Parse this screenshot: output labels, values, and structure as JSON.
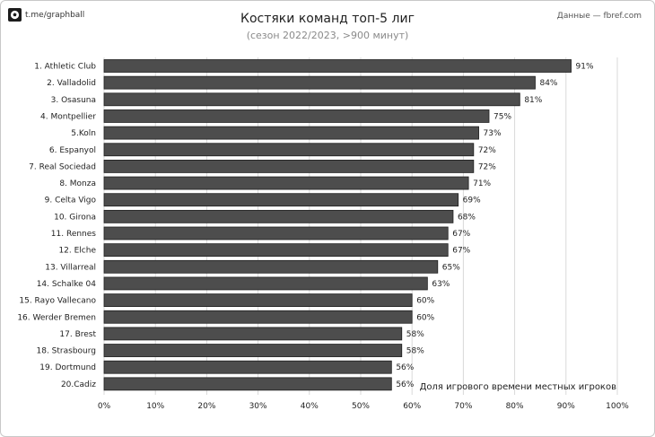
{
  "header": {
    "brand": "t.me/graphball",
    "brand_icon": "soccer-ball-icon",
    "source": "Данные — fbref.com",
    "title": "Костяки команд топ-5 лиг",
    "subtitle": "(сезон 2022/2023, >900 минут)"
  },
  "chart_data": {
    "type": "bar",
    "orientation": "horizontal",
    "categories": [
      "1. Athletic Club",
      "2. Valladolid",
      "3. Osasuna",
      "4. Montpellier",
      "5.Koln",
      "6. Espanyol",
      "7. Real Sociedad",
      "8. Monza",
      "9. Celta Vigo",
      "10. Girona",
      "11. Rennes",
      "12. Elche",
      "13. Villarreal",
      "14. Schalke 04",
      "15. Rayo Vallecano",
      "16. Werder Bremen",
      "17. Brest",
      "18. Strasbourg",
      "19. Dortmund",
      "20.Cadiz"
    ],
    "values": [
      91,
      84,
      81,
      75,
      73,
      72,
      72,
      71,
      69,
      68,
      67,
      67,
      65,
      63,
      60,
      60,
      58,
      58,
      56,
      56
    ],
    "value_labels": [
      "91%",
      "84%",
      "81%",
      "75%",
      "73%",
      "72%",
      "72%",
      "71%",
      "69%",
      "68%",
      "67%",
      "67%",
      "65%",
      "63%",
      "60%",
      "60%",
      "58%",
      "58%",
      "56%",
      "56%"
    ],
    "xlim": [
      0,
      100
    ],
    "x_ticks": [
      "0%",
      "10%",
      "20%",
      "30%",
      "40%",
      "50%",
      "60%",
      "70%",
      "80%",
      "90%",
      "100%"
    ],
    "annotation": "Доля игрового времени местных игроков",
    "grid": true,
    "bar_color": "#4d4d4d",
    "grid_color": "#d9d9d9"
  }
}
